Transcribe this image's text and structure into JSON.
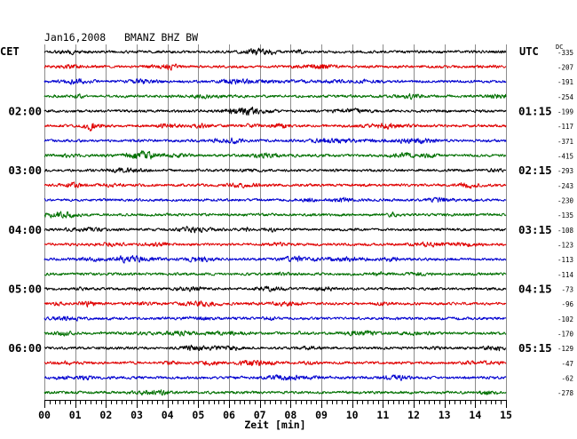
{
  "chart_data": {
    "type": "line",
    "title": "Jan16,2008   BMANZ BHZ BW",
    "xlabel": "Zeit [min]",
    "xlim": [
      0,
      15
    ],
    "x_tick_labels": [
      "00",
      "01",
      "02",
      "03",
      "04",
      "05",
      "06",
      "07",
      "08",
      "09",
      "10",
      "11",
      "12",
      "13",
      "14",
      "15"
    ],
    "left_header": "CET",
    "right_header": "UTC",
    "dc_header": "DC",
    "grid": true,
    "trace_colors": [
      "#000000",
      "#e00000",
      "#0000d0",
      "#007000"
    ],
    "traces": [
      {
        "dc": -335
      },
      {
        "dc": -207
      },
      {
        "dc": -191
      },
      {
        "dc": -254
      },
      {
        "dc": -199,
        "cet": "02:00",
        "utc": "01:15"
      },
      {
        "dc": -117
      },
      {
        "dc": -371
      },
      {
        "dc": -415
      },
      {
        "dc": -293,
        "cet": "03:00",
        "utc": "02:15"
      },
      {
        "dc": -243
      },
      {
        "dc": -230
      },
      {
        "dc": -135
      },
      {
        "dc": -108,
        "cet": "04:00",
        "utc": "03:15"
      },
      {
        "dc": -123
      },
      {
        "dc": -113
      },
      {
        "dc": -114
      },
      {
        "dc": -73,
        "cet": "05:00",
        "utc": "04:15"
      },
      {
        "dc": -96
      },
      {
        "dc": -102
      },
      {
        "dc": -170
      },
      {
        "dc": -129,
        "cet": "06:00",
        "utc": "05:15"
      },
      {
        "dc": -47
      },
      {
        "dc": -62
      },
      {
        "dc": -278
      }
    ]
  }
}
